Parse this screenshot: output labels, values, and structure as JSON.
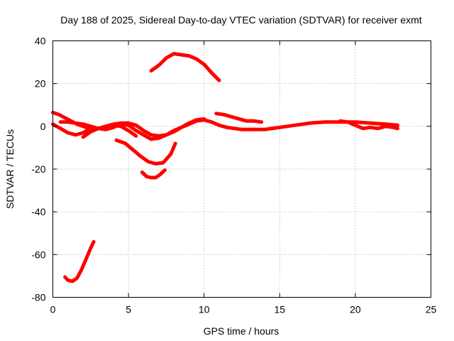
{
  "chart_data": {
    "type": "line",
    "title": "Day 188 of 2025, Sidereal Day-to-day VTEC variation (SDTVAR) for receiver exmt",
    "xlabel": "GPS time / hours",
    "ylabel": "SDTVAR / TECUs",
    "xlim": [
      0,
      25
    ],
    "ylim": [
      -80,
      40
    ],
    "xticks": [
      0,
      5,
      10,
      15,
      20,
      25
    ],
    "yticks": [
      -80,
      -60,
      -40,
      -20,
      0,
      20,
      40
    ],
    "grid": true,
    "line_color": "#ff0000",
    "series": [
      {
        "name": "segment-1",
        "x": [
          0.8,
          1.0,
          1.3,
          1.6,
          1.9,
          2.2,
          2.5,
          2.7
        ],
        "y": [
          -70.5,
          -72,
          -72.5,
          -71,
          -67,
          -62,
          -57,
          -54
        ]
      },
      {
        "name": "segment-2",
        "x": [
          6.5,
          7.0,
          7.5,
          8.0,
          8.5,
          9.0,
          9.5,
          10.0,
          10.5,
          11.0
        ],
        "y": [
          26,
          28.5,
          32,
          34,
          33.5,
          33,
          31.5,
          29,
          25,
          21.5
        ]
      },
      {
        "name": "segment-3",
        "x": [
          0.0,
          0.4,
          0.8,
          1.2,
          1.6,
          2.0,
          2.4,
          2.8
        ],
        "y": [
          6.5,
          5.5,
          4,
          2.5,
          1,
          0,
          -1,
          -1
        ]
      },
      {
        "name": "segment-4",
        "x": [
          0.0,
          0.5,
          1.0,
          1.5,
          2.0,
          2.5
        ],
        "y": [
          1,
          -1,
          -3,
          -4,
          -3,
          -1
        ]
      },
      {
        "name": "segment-5",
        "x": [
          0.5,
          1.0,
          1.5,
          2.0,
          2.5,
          3.0,
          3.5,
          4.0,
          4.5,
          5.0,
          5.5,
          6.0,
          6.5,
          7.0,
          7.5,
          8.0,
          8.5,
          9.0,
          9.5,
          10.0,
          10.5,
          11.0,
          11.5,
          12.0,
          12.5,
          13.0,
          13.5,
          14.0,
          15.0,
          16.0,
          17.0,
          18.0,
          19.0,
          20.0,
          21.0,
          22.0,
          22.8
        ],
        "y": [
          2,
          2,
          1.5,
          1,
          0,
          -1,
          -1.5,
          -0.5,
          1,
          0.5,
          -2,
          -4,
          -6,
          -5.5,
          -4,
          -2,
          -0.5,
          1,
          2.5,
          3,
          2,
          0.5,
          -0.5,
          -1,
          -1.5,
          -1.5,
          -1.5,
          -1.5,
          -0.5,
          0.5,
          1.5,
          2,
          2,
          2,
          1.5,
          1,
          0.5
        ]
      },
      {
        "name": "segment-6",
        "x": [
          2.0,
          2.5,
          3.0,
          3.5,
          4.0,
          4.5,
          5.0,
          5.5,
          6.0,
          6.5,
          7.0,
          7.5,
          8.0,
          8.5,
          9.0,
          9.5,
          10.0
        ],
        "y": [
          -5,
          -2.5,
          -1,
          0,
          1,
          1.5,
          1.5,
          0.5,
          -2,
          -4,
          -4.5,
          -4,
          -2.5,
          -0.5,
          1.5,
          3,
          3.5
        ]
      },
      {
        "name": "segment-7",
        "x": [
          3.0,
          3.5,
          4.0,
          4.5,
          5.0,
          5.5
        ],
        "y": [
          -1,
          -0.5,
          0.5,
          0,
          -2,
          -4.5
        ]
      },
      {
        "name": "segment-8",
        "x": [
          4.2,
          4.8,
          5.3,
          5.8,
          6.3,
          6.8,
          7.3,
          7.8,
          8.1
        ],
        "y": [
          -6.5,
          -8,
          -11,
          -14,
          -16.5,
          -17.5,
          -17,
          -13,
          -8
        ]
      },
      {
        "name": "segment-9",
        "x": [
          5.9,
          6.2,
          6.5,
          6.8,
          7.1,
          7.4
        ],
        "y": [
          -21.5,
          -23.5,
          -24,
          -24,
          -22.5,
          -20.5
        ]
      },
      {
        "name": "segment-10",
        "x": [
          10.8,
          11.3,
          11.8,
          12.3,
          12.8,
          13.3,
          13.8
        ],
        "y": [
          6,
          5.5,
          4.5,
          3.5,
          2.5,
          2.5,
          2
        ]
      },
      {
        "name": "segment-11",
        "x": [
          19.0,
          19.5,
          20.0,
          20.5,
          21.0,
          21.5,
          22.0,
          22.5,
          22.8
        ],
        "y": [
          2.5,
          2,
          0.5,
          -1,
          -0.5,
          -1,
          0,
          -0.5,
          -1
        ]
      }
    ]
  }
}
